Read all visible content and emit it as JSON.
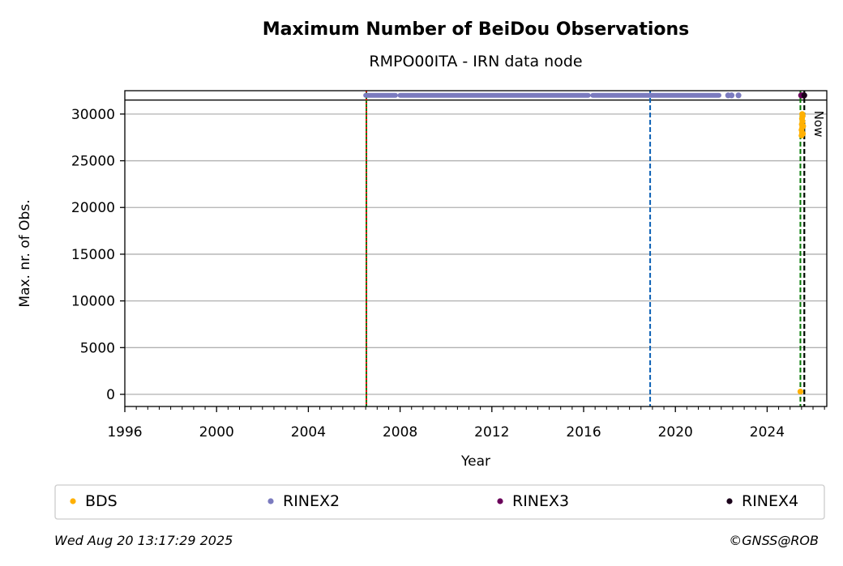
{
  "chart_data": {
    "type": "scatter",
    "title": "Maximum Number of BeiDou Observations",
    "subtitle": "RMPO00ITA - IRN data node",
    "xlabel": "Year",
    "ylabel": "Max. nr. of Obs.",
    "xlim": [
      1996.0,
      2026.6
    ],
    "ylim": [
      -1300,
      32500
    ],
    "x_ticks": [
      1996,
      2000,
      2004,
      2008,
      2012,
      2016,
      2020,
      2024
    ],
    "y_ticks": [
      0,
      5000,
      10000,
      15000,
      20000,
      25000,
      30000
    ],
    "x_minor_step": 0.5,
    "grid": "horizontal",
    "legend_position": "bottom",
    "series": [
      {
        "name": "BDS",
        "color": "#ffb000",
        "points": [
          [
            2025.45,
            300
          ],
          [
            2025.5,
            27700
          ],
          [
            2025.52,
            28000
          ],
          [
            2025.5,
            28300
          ],
          [
            2025.53,
            28600
          ],
          [
            2025.51,
            28900
          ],
          [
            2025.54,
            29200
          ],
          [
            2025.52,
            29500
          ],
          [
            2025.55,
            29800
          ],
          [
            2025.53,
            30000
          ],
          [
            2025.56,
            27900
          ],
          [
            2025.57,
            28700
          ]
        ]
      },
      {
        "name": "RINEX2",
        "color": "#7b7bbf",
        "segments": [
          [
            2006.5,
            2007.8
          ],
          [
            2008.0,
            2016.2
          ],
          [
            2016.4,
            2021.9
          ]
        ],
        "points": [
          [
            2022.3,
            32000
          ],
          [
            2022.45,
            32000
          ],
          [
            2022.75,
            32000
          ]
        ],
        "segment_y": 32000
      },
      {
        "name": "RINEX3",
        "color": "#6a005a",
        "points": [
          [
            2025.48,
            32000
          ],
          [
            2025.52,
            32000
          ],
          [
            2025.56,
            32000
          ],
          [
            2025.6,
            32000
          ]
        ]
      },
      {
        "name": "RINEX4",
        "color": "#1a001a",
        "points": [
          [
            2025.62,
            32000
          ]
        ]
      }
    ],
    "reference_lines": {
      "horizontal_y": 31500,
      "vertical": [
        {
          "x": 2006.53,
          "color": "#007a00",
          "style": "solid"
        },
        {
          "x": 2006.53,
          "color": "#ff0000",
          "style": "dotted"
        },
        {
          "x": 2018.9,
          "color": "#0a5fb4",
          "style": "dashed"
        },
        {
          "x": 2025.45,
          "color": "#007a00",
          "style": "dashed"
        },
        {
          "x": 2025.62,
          "color": "#007a00",
          "style": "dashed"
        },
        {
          "x": 2025.62,
          "color": "#000000",
          "style": "dashed"
        }
      ]
    },
    "now_label": "Now",
    "now_x": 2025.62
  },
  "footer": {
    "date": "Wed Aug 20 13:17:29 2025",
    "credit": "©GNSS@ROB"
  }
}
